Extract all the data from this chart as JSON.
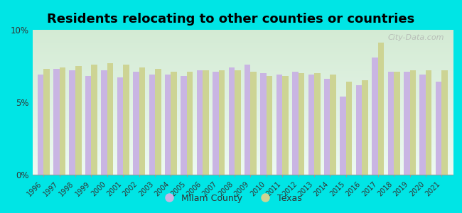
{
  "title": "Residents relocating to other counties or countries",
  "years": [
    1996,
    1997,
    1998,
    1999,
    2000,
    2001,
    2002,
    2003,
    2004,
    2005,
    2006,
    2007,
    2008,
    2009,
    2010,
    2011,
    2012,
    2013,
    2014,
    2015,
    2016,
    2017,
    2018,
    2019,
    2020,
    2021
  ],
  "milam_county": [
    6.9,
    7.3,
    7.2,
    6.8,
    7.2,
    6.7,
    7.1,
    6.9,
    6.9,
    6.8,
    7.2,
    7.1,
    7.4,
    7.6,
    7.0,
    6.9,
    7.1,
    6.9,
    6.6,
    5.4,
    6.2,
    8.1,
    7.1,
    7.1,
    6.9,
    6.4
  ],
  "texas": [
    7.3,
    7.4,
    7.5,
    7.6,
    7.7,
    7.6,
    7.4,
    7.3,
    7.1,
    7.1,
    7.2,
    7.2,
    7.2,
    7.1,
    6.8,
    6.8,
    7.0,
    7.0,
    6.9,
    6.4,
    6.5,
    9.1,
    7.1,
    7.2,
    7.2,
    7.2
  ],
  "milam_color": "#c9b5e3",
  "texas_color": "#cdd494",
  "background_color": "#00e5e5",
  "ylim": [
    0,
    10
  ],
  "ytick_labels": [
    "0%",
    "5%",
    "10%"
  ],
  "legend_milam": "Milam County",
  "legend_texas": "Texas",
  "title_fontsize": 13,
  "watermark": "City-Data.com"
}
